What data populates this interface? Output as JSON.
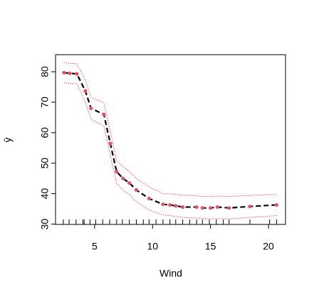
{
  "chart_data": {
    "type": "line",
    "xlabel": "Wind",
    "ylabel": "ŷ",
    "x": [
      2.36,
      2.85,
      3.47,
      4.2,
      4.69,
      5.8,
      6.35,
      6.9,
      7.45,
      8.0,
      8.6,
      9.7,
      10.9,
      11.5,
      12.0,
      12.6,
      13.8,
      14.3,
      15.0,
      15.6,
      16.6,
      18.4,
      20.7
    ],
    "values": [
      79.7,
      79.5,
      79.3,
      73.7,
      68,
      66,
      56.5,
      47.2,
      45,
      43.5,
      41.2,
      38.4,
      36.5,
      36.3,
      36,
      35.6,
      35.6,
      35.3,
      35.3,
      35.6,
      35.3,
      35.8,
      36.3
    ],
    "upper": [
      83,
      82.8,
      82.6,
      77.3,
      71.6,
      69.8,
      60.3,
      51,
      48.8,
      47.3,
      45,
      42.2,
      40,
      39.9,
      39.8,
      39.5,
      39.3,
      39.1,
      39.1,
      39.2,
      39.1,
      39.4,
      39.8
    ],
    "lower": [
      76.4,
      76.2,
      76,
      70.1,
      64.4,
      62.2,
      52.7,
      43.4,
      41.2,
      39.7,
      37.4,
      34.6,
      33,
      32.8,
      32.5,
      32.2,
      32,
      31.8,
      31.7,
      31.8,
      31.7,
      32.2,
      32.8
    ],
    "rug": [
      2.3,
      2.8,
      3.4,
      4.0,
      4.1,
      4.6,
      5.1,
      5.7,
      6.3,
      6.9,
      7.4,
      8.0,
      8.6,
      9.2,
      9.7,
      10.3,
      10.9,
      11.5,
      12.0,
      12.6,
      13.2,
      13.8,
      14.3,
      14.9,
      15.5,
      16.1,
      16.6,
      18.4,
      20.1,
      20.7
    ],
    "line_color": "#000000",
    "point_color": "#df536b",
    "band_color": "#ff0000",
    "xlim": [
      1.63,
      21.47
    ],
    "ylim": [
      29.9,
      85.6
    ],
    "xticks": [
      5,
      10,
      15,
      20
    ],
    "yticks": [
      30,
      40,
      50,
      60,
      70,
      80
    ]
  }
}
